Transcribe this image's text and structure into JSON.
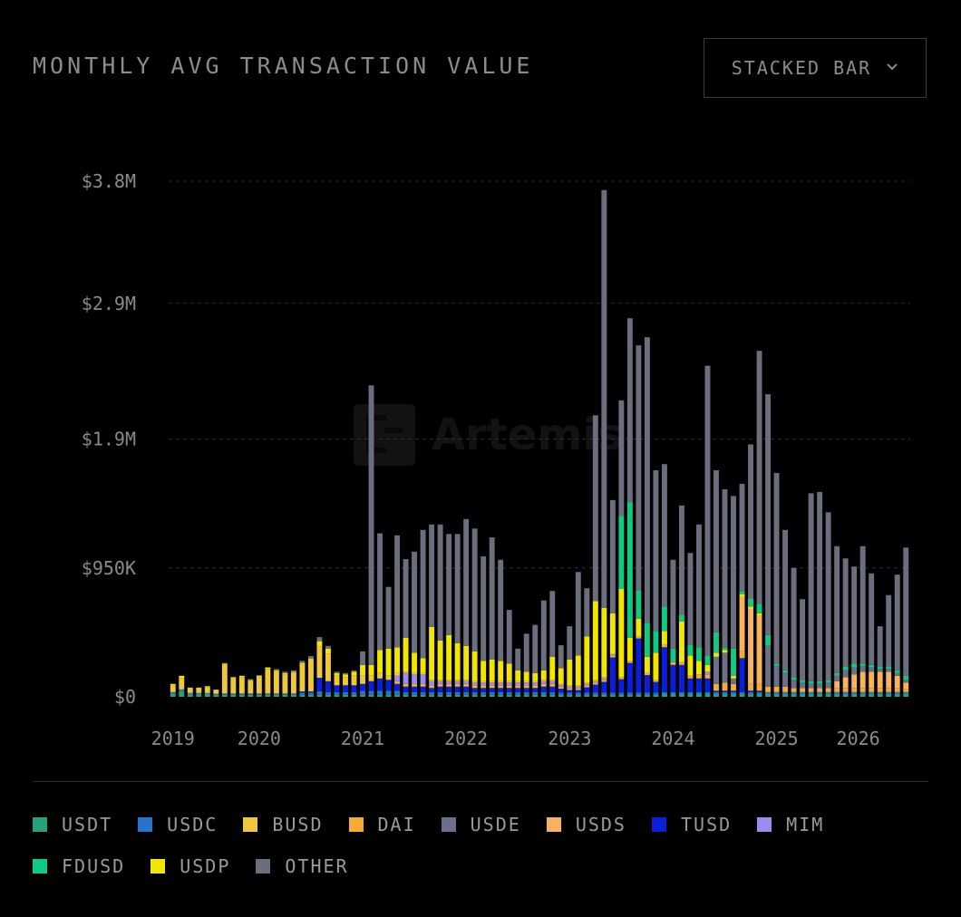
{
  "header": {
    "title": "MONTHLY AVG TRANSACTION VALUE"
  },
  "dropdown": {
    "label": "STACKED BAR",
    "chevron": "chevron-down-icon"
  },
  "watermark": {
    "text": "Artemis"
  },
  "legend": [
    {
      "name": "USDT",
      "color": "#26a17b"
    },
    {
      "name": "USDC",
      "color": "#2775ca"
    },
    {
      "name": "BUSD",
      "color": "#f0c63a"
    },
    {
      "name": "DAI",
      "color": "#f5ac37"
    },
    {
      "name": "USDE",
      "color": "#6c6f8c"
    },
    {
      "name": "USDS",
      "color": "#f9b25e"
    },
    {
      "name": "TUSD",
      "color": "#0a1edc"
    },
    {
      "name": "MIM",
      "color": "#9b8cf2"
    },
    {
      "name": "FDUSD",
      "color": "#12c982"
    },
    {
      "name": "USDP",
      "color": "#f2e600"
    },
    {
      "name": "OTHER",
      "color": "#6b6e7e"
    }
  ],
  "chart_data": {
    "type": "bar",
    "stacked": true,
    "title": "MONTHLY AVG TRANSACTION VALUE",
    "ylim": [
      0,
      3800000
    ],
    "yticks": [
      {
        "value": 0,
        "label": "$0"
      },
      {
        "value": 950000,
        "label": "$950K"
      },
      {
        "value": 1900000,
        "label": "$1.9M"
      },
      {
        "value": 2900000,
        "label": "$2.9M"
      },
      {
        "value": 3800000,
        "label": "$3.8M"
      }
    ],
    "xticks": [
      "2019",
      "2020",
      "2021",
      "2022",
      "2023",
      "2024",
      "2025",
      "2026"
    ],
    "series_order": [
      "USDT",
      "USDC",
      "TUSD",
      "DAI",
      "USDS",
      "MIM",
      "USDE",
      "BUSD",
      "USDP",
      "FDUSD",
      "OTHER"
    ],
    "bars": [
      {
        "USDT": 25000,
        "USDC": 10000,
        "BUSD": 50000,
        "USDP": 10000
      },
      {
        "USDT": 40000,
        "USDC": 15000,
        "BUSD": 80000,
        "USDP": 20000
      },
      {
        "USDT": 20000,
        "USDC": 8000,
        "BUSD": 40000
      },
      {
        "USDT": 20000,
        "USDC": 8000,
        "BUSD": 40000
      },
      {
        "USDT": 20000,
        "USDC": 8000,
        "BUSD": 40000,
        "USDP": 10000
      },
      {
        "USDT": 15000,
        "USDC": 8000,
        "BUSD": 30000
      },
      {
        "USDT": 15000,
        "USDC": 10000,
        "BUSD": 210000,
        "USDP": 10000,
        "OTHER": 5000
      },
      {
        "USDT": 15000,
        "USDC": 10000,
        "BUSD": 110000,
        "USDP": 10000
      },
      {
        "USDT": 15000,
        "USDC": 10000,
        "BUSD": 120000,
        "USDP": 10000
      },
      {
        "USDT": 15000,
        "USDC": 10000,
        "BUSD": 90000,
        "USDP": 10000,
        "OTHER": 5000
      },
      {
        "USDT": 15000,
        "USDC": 10000,
        "BUSD": 120000,
        "USDP": 10000,
        "OTHER": 5000
      },
      {
        "USDT": 15000,
        "USDC": 10000,
        "BUSD": 180000,
        "USDP": 10000,
        "OTHER": 5000
      },
      {
        "USDT": 15000,
        "USDC": 10000,
        "BUSD": 160000,
        "USDP": 10000,
        "OTHER": 10000
      },
      {
        "USDT": 15000,
        "USDC": 10000,
        "BUSD": 140000,
        "USDP": 10000,
        "OTHER": 10000
      },
      {
        "USDT": 15000,
        "USDC": 10000,
        "BUSD": 150000,
        "USDP": 10000,
        "OTHER": 10000
      },
      {
        "USDT": 15000,
        "USDC": 15000,
        "TUSD": 10000,
        "BUSD": 200000,
        "USDP": 10000,
        "OTHER": 15000
      },
      {
        "USDT": 15000,
        "USDC": 15000,
        "TUSD": 10000,
        "BUSD": 230000,
        "USDP": 10000,
        "OTHER": 20000
      },
      {
        "USDT": 15000,
        "USDC": 25000,
        "TUSD": 100000,
        "BUSD": 230000,
        "USDP": 40000,
        "OTHER": 30000
      },
      {
        "USDT": 15000,
        "USDC": 20000,
        "TUSD": 80000,
        "BUSD": 200000,
        "USDP": 40000,
        "OTHER": 20000
      },
      {
        "USDT": 15000,
        "USDC": 20000,
        "TUSD": 50000,
        "BUSD": 70000,
        "USDP": 20000,
        "OTHER": 10000
      },
      {
        "USDT": 15000,
        "USDC": 20000,
        "TUSD": 50000,
        "BUSD": 60000,
        "USDP": 20000,
        "OTHER": 10000
      },
      {
        "USDT": 15000,
        "USDC": 20000,
        "TUSD": 50000,
        "BUSD": 70000,
        "USDP": 30000,
        "OTHER": 10000
      },
      {
        "USDT": 15000,
        "USDC": 30000,
        "TUSD": 50000,
        "BUSD": 60000,
        "USDP": 80000,
        "OTHER": 100000
      },
      {
        "USDT": 15000,
        "USDC": 30000,
        "TUSD": 70000,
        "BUSD": 40000,
        "USDP": 80000,
        "OTHER": 2060000
      },
      {
        "USDT": 15000,
        "USDC": 30000,
        "TUSD": 90000,
        "BUSD": 40000,
        "USDP": 170000,
        "OTHER": 860000
      },
      {
        "USDT": 15000,
        "USDC": 30000,
        "TUSD": 80000,
        "BUSD": 30000,
        "USDP": 200000,
        "OTHER": 455000
      },
      {
        "USDT": 15000,
        "USDC": 30000,
        "TUSD": 50000,
        "DAI": 20000,
        "MIM": 40000,
        "BUSD": 20000,
        "USDP": 190000,
        "OTHER": 825000
      },
      {
        "USDT": 15000,
        "USDC": 20000,
        "TUSD": 40000,
        "DAI": 20000,
        "MIM": 80000,
        "BUSD": 10000,
        "USDP": 250000,
        "OTHER": 580000
      },
      {
        "USDT": 15000,
        "USDC": 20000,
        "TUSD": 40000,
        "DAI": 20000,
        "MIM": 70000,
        "BUSD": 10000,
        "USDP": 150000,
        "OTHER": 745000
      },
      {
        "USDT": 15000,
        "USDC": 20000,
        "TUSD": 40000,
        "DAI": 20000,
        "MIM": 70000,
        "BUSD": 10000,
        "USDP": 110000,
        "OTHER": 945000
      },
      {
        "USDT": 15000,
        "USDC": 20000,
        "TUSD": 30000,
        "DAI": 20000,
        "MIM": 30000,
        "BUSD": 10000,
        "USDP": 390000,
        "OTHER": 755000
      },
      {
        "USDT": 15000,
        "USDC": 20000,
        "TUSD": 40000,
        "DAI": 20000,
        "MIM": 20000,
        "BUSD": 10000,
        "USDP": 290000,
        "OTHER": 855000
      },
      {
        "USDT": 15000,
        "USDC": 20000,
        "TUSD": 40000,
        "DAI": 20000,
        "MIM": 20000,
        "BUSD": 10000,
        "USDP": 330000,
        "OTHER": 745000
      },
      {
        "USDT": 15000,
        "USDC": 20000,
        "TUSD": 40000,
        "DAI": 20000,
        "MIM": 20000,
        "BUSD": 10000,
        "USDP": 270000,
        "OTHER": 805000
      },
      {
        "USDT": 15000,
        "USDC": 20000,
        "TUSD": 40000,
        "DAI": 20000,
        "MIM": 20000,
        "BUSD": 10000,
        "USDP": 250000,
        "OTHER": 935000
      },
      {
        "USDT": 15000,
        "USDC": 20000,
        "TUSD": 30000,
        "DAI": 20000,
        "MIM": 20000,
        "BUSD": 10000,
        "USDP": 220000,
        "OTHER": 905000
      },
      {
        "USDT": 15000,
        "USDC": 20000,
        "TUSD": 30000,
        "DAI": 20000,
        "MIM": 20000,
        "BUSD": 10000,
        "USDP": 150000,
        "OTHER": 770000
      },
      {
        "USDT": 15000,
        "USDC": 20000,
        "TUSD": 30000,
        "DAI": 20000,
        "MIM": 20000,
        "BUSD": 10000,
        "USDP": 160000,
        "OTHER": 900000
      },
      {
        "USDT": 15000,
        "USDC": 20000,
        "TUSD": 30000,
        "DAI": 20000,
        "MIM": 20000,
        "BUSD": 10000,
        "USDP": 150000,
        "OTHER": 745000
      },
      {
        "USDT": 15000,
        "USDC": 20000,
        "TUSD": 30000,
        "DAI": 20000,
        "MIM": 20000,
        "BUSD": 10000,
        "USDP": 130000,
        "OTHER": 395000
      },
      {
        "USDT": 15000,
        "USDC": 20000,
        "TUSD": 30000,
        "DAI": 20000,
        "MIM": 20000,
        "BUSD": 10000,
        "USDP": 80000,
        "OTHER": 160000
      },
      {
        "USDT": 15000,
        "USDC": 20000,
        "TUSD": 30000,
        "DAI": 20000,
        "MIM": 20000,
        "BUSD": 10000,
        "USDP": 70000,
        "OTHER": 280000
      },
      {
        "USDT": 15000,
        "USDC": 20000,
        "TUSD": 30000,
        "DAI": 20000,
        "MIM": 20000,
        "BUSD": 10000,
        "USDP": 60000,
        "OTHER": 355000
      },
      {
        "USDT": 15000,
        "USDC": 20000,
        "TUSD": 40000,
        "DAI": 20000,
        "MIM": 20000,
        "BUSD": 10000,
        "USDP": 70000,
        "OTHER": 515000
      },
      {
        "USDT": 15000,
        "USDC": 20000,
        "TUSD": 40000,
        "DAI": 20000,
        "MIM": 20000,
        "BUSD": 10000,
        "USDP": 170000,
        "OTHER": 485000
      },
      {
        "USDT": 15000,
        "USDC": 15000,
        "TUSD": 30000,
        "DAI": 15000,
        "MIM": 15000,
        "BUSD": 10000,
        "USDP": 110000,
        "OTHER": 170000
      },
      {
        "USDT": 15000,
        "USDC": 15000,
        "TUSD": 20000,
        "DAI": 15000,
        "MIM": 10000,
        "BUSD": 10000,
        "USDP": 190000,
        "OTHER": 245000
      },
      {
        "USDT": 15000,
        "USDC": 15000,
        "TUSD": 20000,
        "DAI": 15000,
        "MIM": 10000,
        "BUSD": 10000,
        "USDP": 220000,
        "OTHER": 615000
      },
      {
        "USDT": 15000,
        "USDC": 15000,
        "TUSD": 40000,
        "DAI": 15000,
        "MIM": 10000,
        "BUSD": 10000,
        "USDP": 340000,
        "OTHER": 355000
      },
      {
        "USDT": 15000,
        "USDC": 15000,
        "TUSD": 60000,
        "DAI": 15000,
        "MIM": 10000,
        "BUSD": 10000,
        "USDP": 580000,
        "OTHER": 1370000
      },
      {
        "USDT": 15000,
        "USDC": 15000,
        "TUSD": 80000,
        "DAI": 15000,
        "MIM": 10000,
        "BUSD": 10000,
        "USDP": 510000,
        "OTHER": 3080000
      },
      {
        "USDT": 15000,
        "USDC": 15000,
        "TUSD": 260000,
        "DAI": 15000,
        "MIM": 10000,
        "USDP": 300000,
        "OTHER": 835000
      },
      {
        "USDT": 15000,
        "USDC": 15000,
        "TUSD": 100000,
        "DAI": 15000,
        "FDUSD": 540000,
        "USDP": 650000,
        "OTHER": 850000
      },
      {
        "USDT": 15000,
        "USDC": 15000,
        "TUSD": 220000,
        "DAI": 15000,
        "FDUSD": 1000000,
        "USDP": 170000,
        "OTHER": 1355000
      },
      {
        "USDT": 15000,
        "USDC": 15000,
        "TUSD": 400000,
        "DAI": 15000,
        "FDUSD": 210000,
        "USDP": 130000,
        "OTHER": 1805000
      },
      {
        "USDT": 15000,
        "USDC": 15000,
        "TUSD": 130000,
        "DAI": 15000,
        "FDUSD": 250000,
        "USDP": 120000,
        "OTHER": 2105000
      },
      {
        "USDT": 15000,
        "USDC": 15000,
        "TUSD": 80000,
        "DAI": 15000,
        "FDUSD": 160000,
        "USDP": 200000,
        "OTHER": 1185000
      },
      {
        "USDT": 20000,
        "USDC": 15000,
        "TUSD": 330000,
        "DAI": 20000,
        "FDUSD": 180000,
        "USDP": 100000,
        "OTHER": 1050000
      },
      {
        "USDT": 20000,
        "USDC": 15000,
        "TUSD": 200000,
        "DAI": 20000,
        "FDUSD": 100000,
        "OTHER": 655000
      },
      {
        "USDT": 20000,
        "USDC": 15000,
        "TUSD": 200000,
        "DAI": 20000,
        "FDUSD": 50000,
        "USDP": 300000,
        "OTHER": 805000
      },
      {
        "USDT": 20000,
        "USDC": 15000,
        "TUSD": 100000,
        "DAI": 20000,
        "FDUSD": 80000,
        "USDP": 150000,
        "OTHER": 675000
      },
      {
        "USDT": 20000,
        "USDC": 15000,
        "TUSD": 100000,
        "DAI": 30000,
        "FDUSD": 100000,
        "USDP": 100000,
        "OTHER": 905000
      },
      {
        "USDT": 20000,
        "USDC": 15000,
        "TUSD": 100000,
        "DAI": 30000,
        "MIM": 20000,
        "FDUSD": 70000,
        "USDP": 50000,
        "OTHER": 2135000
      },
      {
        "USDT": 20000,
        "USDC": 15000,
        "TUSD": 10000,
        "DAI": 50000,
        "USDE": 200000,
        "FDUSD": 150000,
        "USDP": 30000,
        "OTHER": 1195000
      },
      {
        "USDT": 20000,
        "USDC": 15000,
        "TUSD": 10000,
        "DAI": 60000,
        "USDE": 220000,
        "FDUSD": 20000,
        "USDP": 20000,
        "OTHER": 1165000
      },
      {
        "USDT": 20000,
        "USDC": 15000,
        "TUSD": 10000,
        "DAI": 50000,
        "USDE": 40000,
        "FDUSD": 200000,
        "USDP": 20000,
        "OTHER": 1125000
      },
      {
        "USDT": 20000,
        "USDC": 15000,
        "TUSD": 250000,
        "DAI": 50000,
        "USDS": 400000,
        "FDUSD": 20000,
        "USDP": 20000,
        "OTHER": 795000
      },
      {
        "USDT": 20000,
        "USDC": 15000,
        "TUSD": 10000,
        "DAI": 50000,
        "USDS": 550000,
        "FDUSD": 60000,
        "USDP": 20000,
        "OTHER": 1135000
      },
      {
        "USDT": 20000,
        "USDC": 15000,
        "TUSD": 10000,
        "DAI": 50000,
        "USDS": 500000,
        "FDUSD": 70000,
        "USDP": 20000,
        "OTHER": 1865000
      },
      {
        "USDT": 20000,
        "USDC": 15000,
        "DAI": 40000,
        "USDE": 300000,
        "FDUSD": 80000,
        "OTHER": 1775000
      },
      {
        "USDT": 20000,
        "USDC": 15000,
        "DAI": 40000,
        "USDE": 150000,
        "FDUSD": 20000,
        "OTHER": 1405000
      },
      {
        "USDT": 20000,
        "USDC": 15000,
        "DAI": 40000,
        "USDE": 100000,
        "FDUSD": 20000,
        "OTHER": 1035000
      },
      {
        "USDT": 20000,
        "USDC": 15000,
        "DAI": 30000,
        "USDE": 60000,
        "FDUSD": 20000,
        "OTHER": 805000
      },
      {
        "USDT": 20000,
        "USDC": 15000,
        "DAI": 30000,
        "USDE": 40000,
        "FDUSD": 20000,
        "OTHER": 595000
      },
      {
        "USDT": 20000,
        "USDC": 15000,
        "DAI": 30000,
        "USDE": 30000,
        "FDUSD": 20000,
        "OTHER": 1385000
      },
      {
        "USDT": 20000,
        "USDC": 15000,
        "DAI": 30000,
        "USDE": 30000,
        "FDUSD": 20000,
        "OTHER": 1395000
      },
      {
        "USDT": 20000,
        "USDC": 15000,
        "DAI": 30000,
        "USDE": 40000,
        "FDUSD": 20000,
        "OTHER": 1235000
      },
      {
        "USDT": 20000,
        "USDC": 15000,
        "DAI": 30000,
        "USDS": 50000,
        "USDE": 40000,
        "FDUSD": 20000,
        "OTHER": 935000
      },
      {
        "USDT": 20000,
        "USDC": 15000,
        "DAI": 30000,
        "USDS": 80000,
        "USDE": 50000,
        "FDUSD": 30000,
        "OTHER": 795000
      },
      {
        "USDT": 20000,
        "USDC": 15000,
        "DAI": 30000,
        "USDS": 100000,
        "USDE": 50000,
        "FDUSD": 30000,
        "OTHER": 715000
      },
      {
        "USDT": 20000,
        "USDC": 15000,
        "DAI": 30000,
        "USDS": 120000,
        "USDE": 40000,
        "FDUSD": 20000,
        "OTHER": 865000
      },
      {
        "USDT": 20000,
        "USDC": 15000,
        "DAI": 30000,
        "USDS": 120000,
        "USDE": 30000,
        "FDUSD": 20000,
        "OTHER": 675000
      },
      {
        "USDT": 20000,
        "USDC": 15000,
        "DAI": 30000,
        "USDS": 120000,
        "USDE": 20000,
        "FDUSD": 20000,
        "OTHER": 295000
      },
      {
        "USDT": 20000,
        "USDC": 15000,
        "DAI": 30000,
        "USDS": 120000,
        "USDE": 20000,
        "FDUSD": 20000,
        "OTHER": 525000
      },
      {
        "USDT": 20000,
        "USDC": 15000,
        "DAI": 30000,
        "USDS": 90000,
        "USDE": 20000,
        "FDUSD": 20000,
        "OTHER": 705000
      },
      {
        "USDT": 20000,
        "USDC": 15000,
        "DAI": 20000,
        "USDS": 50000,
        "USDE": 20000,
        "FDUSD": 30000,
        "OTHER": 945000
      }
    ]
  }
}
